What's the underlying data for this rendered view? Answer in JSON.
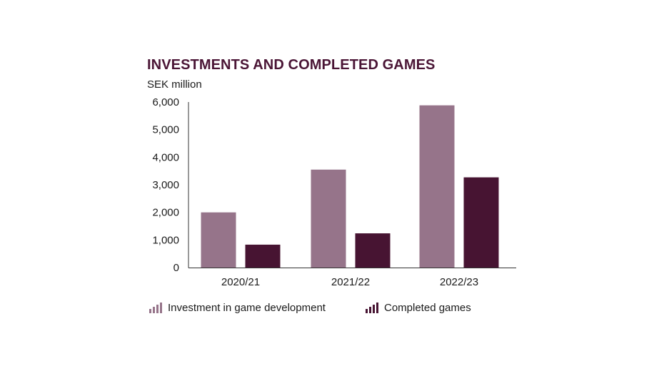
{
  "chart_data": {
    "type": "bar",
    "title": "INVESTMENTS AND COMPLETED GAMES",
    "ylabel": "SEK million",
    "xlabel": "",
    "categories": [
      "2020/21",
      "2021/22",
      "2022/23"
    ],
    "series": [
      {
        "name": "Investment in game development",
        "color": "#96748a",
        "values": [
          2000,
          3550,
          5880
        ]
      },
      {
        "name": "Completed games",
        "color": "#471432",
        "values": [
          830,
          1240,
          3270
        ]
      }
    ],
    "ylim": [
      0,
      6000
    ],
    "yticks": [
      0,
      1000,
      2000,
      3000,
      4000,
      5000,
      6000
    ],
    "ytick_labels": [
      "0",
      "1,000",
      "2,000",
      "3,000",
      "4,000",
      "5,000",
      "6,000"
    ],
    "grid": false,
    "legend": "bottom",
    "title_color": "#4a1535"
  }
}
